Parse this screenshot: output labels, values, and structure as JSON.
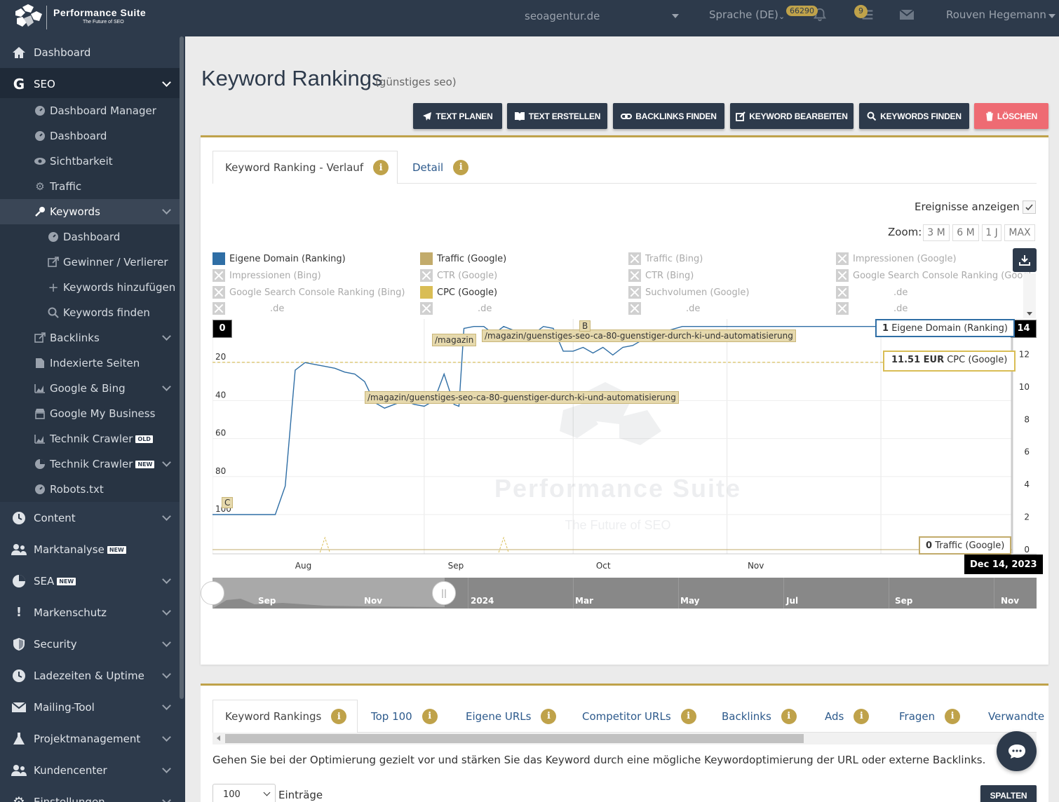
{
  "app": {
    "name": "Performance Suite",
    "tagline": "The Future of SEO"
  },
  "topbar": {
    "project": "seoagentur.de",
    "language": "Sprache (DE)",
    "notifications_count": "66290",
    "tasks_count": "9",
    "user": "Rouven Hegemann"
  },
  "sidebar": {
    "dashboard": "Dashboard",
    "seo": "SEO",
    "seo_sub": {
      "dashboard_manager": "Dashboard Manager",
      "dashboard": "Dashboard",
      "sichtbarkeit": "Sichtbarkeit",
      "traffic": "Traffic",
      "keywords": "Keywords",
      "kw_dashboard": "Dashboard",
      "gewinner": "Gewinner / Verlierer",
      "kw_hinzufuegen": "Keywords hinzufügen",
      "kw_finden": "Keywords finden",
      "backlinks": "Backlinks",
      "indexierte": "Indexierte Seiten",
      "google_bing": "Google & Bing",
      "gmb": "Google My Business",
      "technik_crawler_old": "Technik Crawler",
      "technik_crawler_new": "Technik Crawler",
      "robots": "Robots.txt"
    },
    "content": "Content",
    "marktanalyse": "Marktanalyse",
    "sea": "SEA",
    "markenschutz": "Markenschutz",
    "security": "Security",
    "ladezeiten": "Ladezeiten & Uptime",
    "mailing": "Mailing-Tool",
    "projektmanagement": "Projektmanagement",
    "kundencenter": "Kundencenter",
    "einstellungen": "Einstellungen",
    "tag_old": "OLD",
    "tag_new": "NEW"
  },
  "page": {
    "title": "Keyword Rankings",
    "subtitle": "(günstiges seo)"
  },
  "toolbar": {
    "text_planen": "TEXT PLANEN",
    "text_erstellen": "TEXT ERSTELLEN",
    "backlinks_finden": "BACKLINKS FINDEN",
    "keyword_bearbeiten": "KEYWORD BEARBEITEN",
    "keywords_finden": "KEYWORDS FINDEN",
    "loeschen": "LÖSCHEN"
  },
  "chart_card": {
    "tab_verlauf": "Keyword Ranking - Verlauf",
    "tab_detail": "Detail",
    "events_label": "Ereignisse anzeigen",
    "zoom_label": "Zoom:",
    "zoom_options": [
      "3 M",
      "6 M",
      "1 J",
      "MAX"
    ],
    "legend": [
      {
        "label": "Eigene Domain (Ranking)",
        "enabled": true,
        "color": "#2f6ea5"
      },
      {
        "label": "Traffic (Google)",
        "enabled": true,
        "color": "#c2ab6b"
      },
      {
        "label": "Traffic (Bing)",
        "enabled": false
      },
      {
        "label": "Impressionen (Google)",
        "enabled": false
      },
      {
        "label": "Impressionen (Bing)",
        "enabled": false
      },
      {
        "label": "CTR (Google)",
        "enabled": false
      },
      {
        "label": "CTR (Bing)",
        "enabled": false
      },
      {
        "label": "Google Search Console Ranking (Googl",
        "enabled": false
      },
      {
        "label": "Google Search Console Ranking (Bing)",
        "enabled": false
      },
      {
        "label": "CPC (Google)",
        "enabled": true,
        "color": "#d9bd55"
      },
      {
        "label": "Suchvolumen (Google)",
        "enabled": false
      },
      {
        "label": ".de",
        "enabled": false
      },
      {
        "label": ".de",
        "enabled": false
      },
      {
        "label": ".de",
        "enabled": false
      },
      {
        "label": ".de",
        "enabled": false
      },
      {
        "label": ".de",
        "enabled": false
      }
    ],
    "tooltips": {
      "ranking_value": "1",
      "ranking_label": "Eigene Domain (Ranking)",
      "cpc_value": "11.51 EUR",
      "cpc_label": "CPC (Google)",
      "traffic_value": "0",
      "traffic_label": "Traffic (Google)",
      "date": "Dec 14, 2023",
      "left_axis_current": "0",
      "right_axis_current": "14"
    },
    "annotations": {
      "magazin": "/magazin",
      "guenstiges_1": "/magazin/guenstiges-seo-ca-80-guenstiger-durch-ki-und-automatisierung",
      "guenstiges_2": "/magazin/guenstiges-seo-ca-80-guenstiger-durch-ki-und-automatisierung",
      "b": "B",
      "c": "C"
    },
    "watermark": {
      "title": "Performance Suite",
      "sub": "The Future of SEO"
    },
    "navigator_labels": [
      "Sep",
      "Nov",
      "2024",
      "Mar",
      "May",
      "Jul",
      "Sep",
      "Nov"
    ]
  },
  "chart_data": {
    "type": "line",
    "x_ticks": [
      "Aug",
      "Sep",
      "Oct",
      "Nov"
    ],
    "y_left_ticks": [
      20,
      40,
      60,
      80,
      100
    ],
    "y_left_reversed": true,
    "y_right_ticks": [
      0,
      2,
      4,
      6,
      8,
      10,
      12
    ],
    "cpc_value": 11.51,
    "series": [
      {
        "name": "Eigene Domain (Ranking)",
        "axis": "left",
        "x": [
          "2023-07-13",
          "2023-07-20",
          "2023-07-22",
          "2023-07-24",
          "2023-07-26",
          "2023-07-28",
          "2023-07-30",
          "2023-08-01",
          "2023-08-03",
          "2023-08-05",
          "2023-08-07",
          "2023-08-09",
          "2023-08-11",
          "2023-08-13",
          "2023-08-15",
          "2023-08-17",
          "2023-08-19",
          "2023-08-21",
          "2023-08-23",
          "2023-08-25",
          "2023-08-26",
          "2023-08-27",
          "2023-08-29",
          "2023-08-31",
          "2023-09-02",
          "2023-09-04",
          "2023-09-06",
          "2023-09-08",
          "2023-09-10",
          "2023-09-12",
          "2023-09-14",
          "2023-09-16",
          "2023-09-18",
          "2023-09-20",
          "2023-09-22",
          "2023-09-24",
          "2023-09-26",
          "2023-09-28",
          "2023-09-30",
          "2023-10-02",
          "2023-10-04",
          "2023-10-06",
          "2023-10-10",
          "2023-10-15",
          "2023-10-20",
          "2023-10-25",
          "2023-10-30",
          "2023-11-05",
          "2023-11-10",
          "2023-11-15",
          "2023-11-20",
          "2023-11-25",
          "2023-12-01",
          "2023-12-07",
          "2023-12-14"
        ],
        "values": [
          100,
          100,
          85,
          24,
          20,
          21,
          22,
          23,
          25,
          26,
          30,
          41,
          44,
          42,
          40,
          42,
          43,
          40,
          26,
          42,
          43,
          2,
          1,
          1,
          5,
          1,
          3,
          8,
          5,
          1,
          2,
          14,
          14,
          12,
          15,
          12,
          16,
          12,
          11,
          8,
          6,
          4,
          1,
          1,
          1,
          1,
          1,
          1,
          1,
          1,
          1,
          1,
          1,
          1,
          1
        ]
      },
      {
        "name": "CPC (Google)",
        "axis": "right",
        "x": [
          "2023-07-13",
          "2023-12-14"
        ],
        "values": [
          11.51,
          11.51
        ]
      },
      {
        "name": "Traffic (Google)",
        "axis": "right",
        "x": [
          "2023-07-13",
          "2023-12-14"
        ],
        "values": [
          0,
          0
        ]
      }
    ]
  },
  "bottom_card": {
    "tabs": [
      "Keyword Rankings",
      "Top 100",
      "Eigene URLs",
      "Competitor URLs",
      "Backlinks",
      "Ads",
      "Fragen",
      "Verwandte"
    ],
    "description": "Gehen Sie bei der Optimierung gezielt vor und stärken Sie das Keyword durch eine mögliche Keywordoptimierung der URL oder externe Backlinks.",
    "entries_value": "100",
    "entries_label": "Einträge",
    "columns_button": "SPALTEN"
  }
}
